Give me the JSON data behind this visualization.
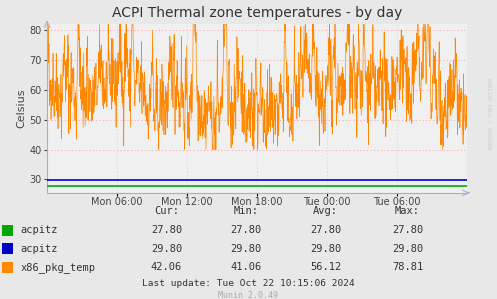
{
  "title": "ACPI Thermal zone temperatures - by day",
  "ylabel": "Celsius",
  "background_color": "#e8e8e8",
  "plot_bg_color": "#f0f0f0",
  "ylim": [
    25.5,
    82
  ],
  "yticks": [
    30,
    40,
    50,
    60,
    70,
    80
  ],
  "grid_color": "#ff9999",
  "grid_color_minor": "#ccccee",
  "acpitz_green_val": 27.8,
  "acpitz_blue_val": 29.8,
  "xtick_labels": [
    "Mon 06:00",
    "Mon 12:00",
    "Mon 18:00",
    "Tue 00:00",
    "Tue 06:00"
  ],
  "legend_entries": [
    {
      "label": "acpitz",
      "color": "#00aa00"
    },
    {
      "label": "acpitz",
      "color": "#0000cc"
    },
    {
      "label": "x86_pkg_temp",
      "color": "#ff8800"
    }
  ],
  "table_headers": [
    "Cur:",
    "Min:",
    "Avg:",
    "Max:"
  ],
  "table_data": [
    [
      "27.80",
      "27.80",
      "27.80",
      "27.80"
    ],
    [
      "29.80",
      "29.80",
      "29.80",
      "29.80"
    ],
    [
      "42.06",
      "41.06",
      "56.12",
      "78.81"
    ]
  ],
  "last_update": "Last update: Tue Oct 22 10:15:06 2024",
  "munin_version": "Munin 2.0.49",
  "rrdtool_label": "RRDTOOL / TOBI OETIKER",
  "orange_color": "#ff8800",
  "green_color": "#00aa00",
  "blue_color": "#0000cc",
  "arrow_color": "#aaaacc",
  "title_fontsize": 10,
  "label_fontsize": 8,
  "tick_fontsize": 7,
  "legend_fontsize": 7.5
}
